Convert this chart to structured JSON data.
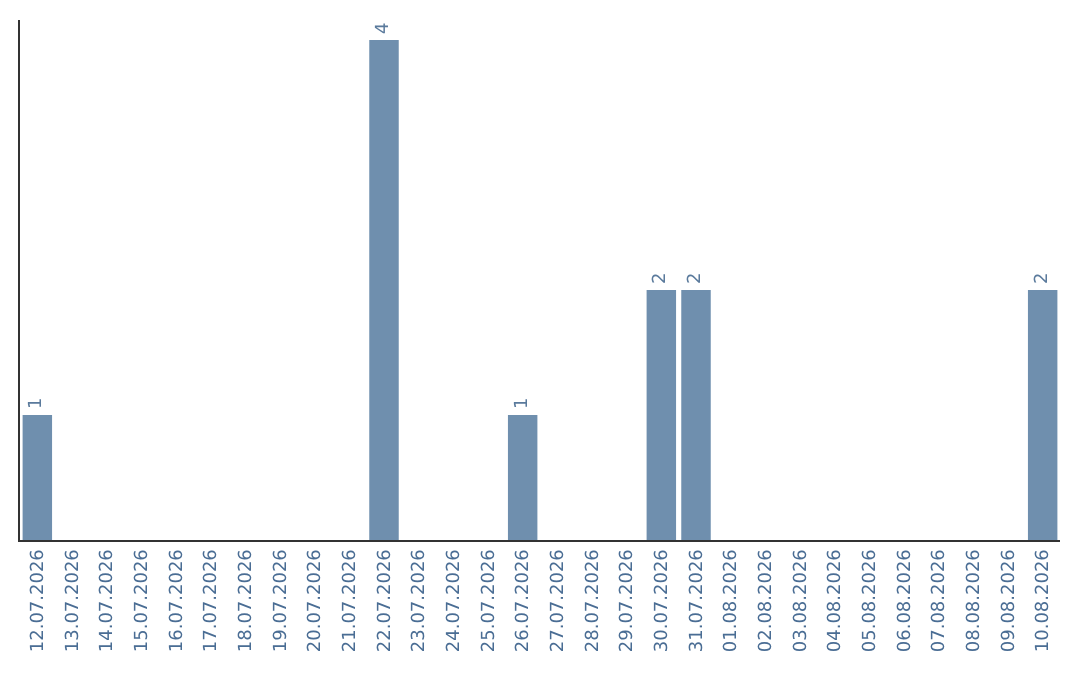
{
  "chart_data": {
    "type": "bar",
    "categories": [
      "12.07.2026",
      "13.07.2026",
      "14.07.2026",
      "15.07.2026",
      "16.07.2026",
      "17.07.2026",
      "18.07.2026",
      "19.07.2026",
      "20.07.2026",
      "21.07.2026",
      "22.07.2026",
      "23.07.2026",
      "24.07.2026",
      "25.07.2026",
      "26.07.2026",
      "27.07.2026",
      "28.07.2026",
      "29.07.2026",
      "30.07.2026",
      "31.07.2026",
      "01.08.2026",
      "02.08.2026",
      "03.08.2026",
      "04.08.2026",
      "05.08.2026",
      "06.08.2026",
      "07.08.2026",
      "08.08.2026",
      "09.08.2026",
      "10.08.2026"
    ],
    "values": [
      1,
      0,
      0,
      0,
      0,
      0,
      0,
      0,
      0,
      0,
      4,
      0,
      0,
      0,
      1,
      0,
      0,
      0,
      2,
      2,
      0,
      0,
      0,
      0,
      0,
      0,
      0,
      0,
      0,
      2
    ],
    "value_labels": [
      "1",
      null,
      null,
      null,
      null,
      null,
      null,
      null,
      null,
      null,
      "4",
      null,
      null,
      null,
      "1",
      null,
      null,
      null,
      "2",
      "2",
      null,
      null,
      null,
      null,
      null,
      null,
      null,
      null,
      null,
      "2"
    ],
    "color": "#6f8fae",
    "ylim": [
      0,
      4.16
    ],
    "tick_labels": "x"
  }
}
